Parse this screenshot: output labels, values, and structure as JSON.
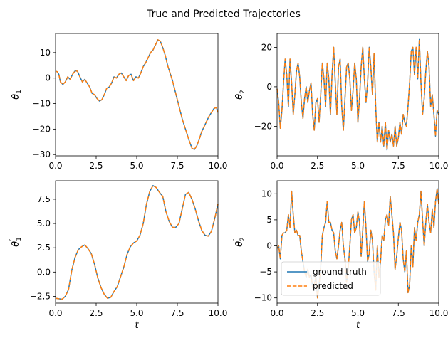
{
  "figure": {
    "title": "True and Predicted Trajectories",
    "colors": {
      "truth": "#1f77b4",
      "predicted": "#ff7f0e"
    }
  },
  "legend": {
    "entries": [
      {
        "key": "truth",
        "label": "ground truth",
        "style": "solid"
      },
      {
        "key": "predicted",
        "label": "predicted",
        "style": "dashed"
      }
    ],
    "placement": "lower-left"
  },
  "chart_data": [
    {
      "type": "line",
      "ylabel": "θ1",
      "xlabel": "",
      "xlim": [
        0,
        10
      ],
      "ylim": [
        -30.5,
        17.5
      ],
      "xticks": [
        0,
        2.5,
        5,
        7.5,
        10
      ],
      "xtick_labels": [
        "0.0",
        "2.5",
        "5.0",
        "7.5",
        "10.0"
      ],
      "yticks": [
        -30,
        -20,
        -10,
        0,
        10
      ],
      "ytick_labels": [
        "−30",
        "−20",
        "−10",
        "0",
        "10"
      ],
      "x": [
        0.0,
        0.1,
        0.2,
        0.3,
        0.45,
        0.6,
        0.75,
        0.9,
        1.05,
        1.2,
        1.35,
        1.5,
        1.65,
        1.8,
        1.95,
        2.1,
        2.25,
        2.4,
        2.55,
        2.7,
        2.85,
        3.0,
        3.15,
        3.3,
        3.45,
        3.6,
        3.75,
        3.9,
        4.05,
        4.2,
        4.35,
        4.5,
        4.65,
        4.8,
        4.95,
        5.1,
        5.25,
        5.4,
        5.55,
        5.7,
        5.85,
        6.0,
        6.15,
        6.3,
        6.45,
        6.6,
        6.75,
        6.9,
        7.05,
        7.2,
        7.4,
        7.6,
        7.8,
        8.0,
        8.2,
        8.4,
        8.55,
        8.7,
        8.85,
        9.0,
        9.15,
        9.3,
        9.45,
        9.6,
        9.75,
        9.9,
        10.0
      ],
      "series": [
        {
          "key": "truth",
          "values": [
            2.7,
            2.5,
            1.5,
            -1.5,
            -2.5,
            -1.5,
            0.5,
            -0.5,
            1.5,
            2.8,
            2.7,
            0.5,
            -1.5,
            -0.5,
            -2.0,
            -3.5,
            -6.0,
            -6.5,
            -8.0,
            -9.0,
            -8.5,
            -6.5,
            -4.0,
            -3.5,
            -2.0,
            0.5,
            0.0,
            1.5,
            2.0,
            0.5,
            -1.0,
            1.0,
            1.5,
            -1.0,
            0.5,
            0.0,
            2.0,
            4.5,
            6.0,
            8.0,
            10.0,
            11.0,
            13.0,
            15.0,
            14.5,
            12.0,
            9.0,
            5.0,
            2.0,
            -1.0,
            -6.0,
            -11.0,
            -16.0,
            -20.0,
            -24.0,
            -27.5,
            -28.0,
            -26.5,
            -24.0,
            -21.0,
            -19.0,
            -17.0,
            -15.0,
            -13.5,
            -12.0,
            -11.5,
            -13.5
          ]
        },
        {
          "key": "predicted",
          "values": [
            2.7,
            2.5,
            1.5,
            -1.5,
            -2.5,
            -1.5,
            0.5,
            -0.5,
            1.5,
            2.8,
            2.7,
            0.5,
            -1.5,
            -0.5,
            -2.0,
            -3.5,
            -6.0,
            -6.5,
            -8.0,
            -9.0,
            -8.5,
            -6.5,
            -4.0,
            -3.5,
            -2.0,
            0.5,
            0.0,
            1.5,
            2.0,
            0.5,
            -1.0,
            1.0,
            1.5,
            -1.0,
            0.5,
            0.0,
            2.0,
            4.5,
            6.0,
            8.0,
            10.0,
            11.0,
            13.0,
            15.0,
            14.5,
            12.0,
            9.0,
            5.0,
            2.0,
            -1.0,
            -6.0,
            -11.0,
            -16.0,
            -20.0,
            -24.0,
            -27.5,
            -28.0,
            -26.5,
            -24.0,
            -21.0,
            -19.0,
            -17.0,
            -15.0,
            -13.5,
            -12.0,
            -11.5,
            -13.5
          ]
        }
      ]
    },
    {
      "type": "line",
      "ylabel": "θ2",
      "xlabel": "",
      "xlim": [
        0,
        10
      ],
      "ylim": [
        -35,
        27
      ],
      "xticks": [
        0,
        2.5,
        5,
        7.5,
        10
      ],
      "xtick_labels": [
        "0.0",
        "2.5",
        "5.0",
        "7.5",
        "10.0"
      ],
      "yticks": [
        -20,
        0,
        20
      ],
      "ytick_labels": [
        "−20",
        "0",
        "20"
      ],
      "x": [
        0.0,
        0.1,
        0.2,
        0.3,
        0.4,
        0.5,
        0.6,
        0.7,
        0.8,
        0.9,
        1.0,
        1.1,
        1.2,
        1.3,
        1.4,
        1.5,
        1.6,
        1.7,
        1.8,
        1.9,
        2.0,
        2.1,
        2.2,
        2.3,
        2.4,
        2.5,
        2.6,
        2.7,
        2.8,
        2.9,
        3.0,
        3.1,
        3.2,
        3.3,
        3.4,
        3.5,
        3.6,
        3.7,
        3.8,
        3.9,
        4.0,
        4.1,
        4.2,
        4.3,
        4.4,
        4.5,
        4.6,
        4.7,
        4.8,
        4.9,
        5.0,
        5.1,
        5.2,
        5.3,
        5.4,
        5.5,
        5.6,
        5.7,
        5.8,
        5.9,
        6.0,
        6.1,
        6.2,
        6.3,
        6.4,
        6.5,
        6.6,
        6.7,
        6.8,
        6.9,
        7.0,
        7.1,
        7.2,
        7.3,
        7.4,
        7.5,
        7.6,
        7.7,
        7.8,
        7.9,
        8.0,
        8.1,
        8.2,
        8.3,
        8.4,
        8.5,
        8.6,
        8.7,
        8.8,
        8.9,
        9.0,
        9.1,
        9.2,
        9.3,
        9.4,
        9.5,
        9.6,
        9.7,
        9.8,
        9.9,
        10.0
      ],
      "series": [
        {
          "key": "truth",
          "values": [
            -1,
            -8,
            -21,
            -12,
            2,
            14,
            6,
            -10,
            14,
            2,
            -14,
            -4,
            8,
            12,
            5,
            -8,
            -16,
            -6,
            0,
            -8,
            -2,
            2,
            -14,
            -22,
            -8,
            -6,
            -18,
            -4,
            12,
            4,
            -10,
            12,
            4,
            -14,
            6,
            20,
            2,
            -14,
            10,
            14,
            -10,
            -22,
            -6,
            10,
            12,
            4,
            -12,
            -2,
            12,
            4,
            -18,
            -6,
            10,
            20,
            4,
            -8,
            2,
            20,
            10,
            -4,
            17,
            -10,
            -28,
            -18,
            -28,
            -20,
            -30,
            -18,
            -32,
            -22,
            -28,
            -24,
            -30,
            -20,
            -30,
            -26,
            -18,
            -24,
            -14,
            -18,
            -20,
            -10,
            2,
            18,
            20,
            6,
            20,
            4,
            24,
            2,
            -14,
            -6,
            8,
            18,
            10,
            -10,
            -4,
            -14,
            -25,
            -12,
            -14
          ]
        },
        {
          "key": "predicted",
          "values": [
            -1,
            -8,
            -21,
            -12,
            2,
            14,
            6,
            -10,
            14,
            2,
            -14,
            -4,
            8,
            12,
            5,
            -8,
            -16,
            -6,
            0,
            -8,
            -2,
            2,
            -14,
            -22,
            -8,
            -6,
            -18,
            -4,
            12,
            4,
            -10,
            12,
            4,
            -14,
            6,
            20,
            2,
            -14,
            10,
            14,
            -10,
            -22,
            -6,
            10,
            12,
            4,
            -12,
            -2,
            12,
            4,
            -18,
            -6,
            10,
            20,
            4,
            -8,
            2,
            20,
            10,
            -4,
            17,
            -10,
            -28,
            -18,
            -28,
            -20,
            -30,
            -18,
            -32,
            -22,
            -28,
            -24,
            -30,
            -20,
            -30,
            -26,
            -18,
            -24,
            -14,
            -18,
            -20,
            -10,
            2,
            18,
            20,
            6,
            20,
            4,
            24,
            2,
            -14,
            -6,
            8,
            18,
            10,
            -10,
            -4,
            -14,
            -25,
            -12,
            -14
          ]
        }
      ]
    },
    {
      "type": "line",
      "ylabel": "θ1′",
      "xlabel": "t",
      "xlim": [
        0,
        10
      ],
      "ylim": [
        -3.2,
        9.4
      ],
      "xticks": [
        0,
        2.5,
        5,
        7.5,
        10
      ],
      "xtick_labels": [
        "0.0",
        "2.5",
        "5.0",
        "7.5",
        "10.0"
      ],
      "yticks": [
        -2.5,
        0,
        2.5,
        5,
        7.5
      ],
      "ytick_labels": [
        "−2.5",
        "0.0",
        "2.5",
        "5.0",
        "7.5"
      ],
      "x": [
        0.0,
        0.2,
        0.4,
        0.6,
        0.8,
        1.0,
        1.2,
        1.4,
        1.6,
        1.8,
        2.0,
        2.2,
        2.4,
        2.6,
        2.8,
        3.0,
        3.2,
        3.4,
        3.6,
        3.8,
        4.0,
        4.2,
        4.4,
        4.6,
        4.8,
        5.0,
        5.2,
        5.4,
        5.6,
        5.8,
        6.0,
        6.2,
        6.4,
        6.6,
        6.8,
        7.0,
        7.2,
        7.4,
        7.6,
        7.8,
        8.0,
        8.2,
        8.4,
        8.6,
        8.8,
        9.0,
        9.2,
        9.4,
        9.6,
        9.8,
        10.0
      ],
      "series": [
        {
          "key": "truth",
          "values": [
            -2.7,
            -2.75,
            -2.8,
            -2.5,
            -1.8,
            0.2,
            1.5,
            2.3,
            2.6,
            2.8,
            2.4,
            1.9,
            0.8,
            -0.6,
            -1.6,
            -2.3,
            -2.7,
            -2.6,
            -2.0,
            -1.5,
            -0.5,
            0.5,
            1.8,
            2.6,
            3.0,
            3.2,
            3.8,
            5.0,
            7.0,
            8.3,
            8.9,
            8.7,
            8.2,
            7.8,
            6.2,
            5.2,
            4.6,
            4.6,
            5.0,
            6.5,
            8.0,
            8.2,
            7.5,
            6.5,
            5.3,
            4.3,
            3.8,
            3.7,
            4.2,
            5.5,
            7.0
          ]
        },
        {
          "key": "predicted",
          "values": [
            -2.7,
            -2.75,
            -2.8,
            -2.5,
            -1.8,
            0.2,
            1.5,
            2.3,
            2.6,
            2.8,
            2.4,
            1.9,
            0.8,
            -0.6,
            -1.6,
            -2.3,
            -2.7,
            -2.6,
            -2.0,
            -1.5,
            -0.5,
            0.5,
            1.8,
            2.6,
            3.0,
            3.2,
            3.8,
            5.0,
            7.0,
            8.3,
            8.9,
            8.7,
            8.2,
            7.8,
            6.2,
            5.2,
            4.6,
            4.6,
            5.0,
            6.5,
            8.0,
            8.2,
            7.5,
            6.5,
            5.3,
            4.3,
            3.8,
            3.7,
            4.2,
            5.5,
            7.0
          ]
        }
      ]
    },
    {
      "type": "line",
      "ylabel": "θ2′",
      "xlabel": "t",
      "xlim": [
        0,
        10
      ],
      "ylim": [
        -11,
        12.5
      ],
      "xticks": [
        0,
        2.5,
        5,
        7.5,
        10
      ],
      "xtick_labels": [
        "0.0",
        "2.5",
        "5.0",
        "7.5",
        "10.0"
      ],
      "yticks": [
        -10,
        -5,
        0,
        5,
        10
      ],
      "ytick_labels": [
        "−10",
        "−5",
        "0",
        "5",
        "10"
      ],
      "x": [
        0.0,
        0.1,
        0.2,
        0.3,
        0.4,
        0.5,
        0.6,
        0.7,
        0.8,
        0.9,
        1.0,
        1.1,
        1.2,
        1.3,
        1.4,
        1.5,
        1.6,
        1.7,
        1.8,
        1.9,
        2.0,
        2.1,
        2.2,
        2.3,
        2.4,
        2.5,
        2.6,
        2.7,
        2.8,
        2.9,
        3.0,
        3.1,
        3.2,
        3.3,
        3.4,
        3.5,
        3.6,
        3.7,
        3.8,
        3.9,
        4.0,
        4.1,
        4.2,
        4.3,
        4.4,
        4.5,
        4.6,
        4.7,
        4.8,
        4.9,
        5.0,
        5.1,
        5.2,
        5.3,
        5.4,
        5.5,
        5.6,
        5.7,
        5.8,
        5.9,
        6.0,
        6.1,
        6.2,
        6.3,
        6.4,
        6.5,
        6.6,
        6.7,
        6.8,
        6.9,
        7.0,
        7.1,
        7.2,
        7.3,
        7.4,
        7.5,
        7.6,
        7.7,
        7.8,
        7.9,
        8.0,
        8.1,
        8.2,
        8.3,
        8.4,
        8.5,
        8.6,
        8.7,
        8.8,
        8.9,
        9.0,
        9.1,
        9.2,
        9.3,
        9.4,
        9.5,
        9.6,
        9.7,
        9.8,
        9.9,
        10.0
      ],
      "series": [
        {
          "key": "truth",
          "values": [
            -0.5,
            0.0,
            -2.5,
            2.0,
            2.5,
            2.5,
            3.0,
            6.0,
            3.5,
            10.5,
            6.0,
            2.5,
            3.0,
            2.0,
            2.0,
            -1.0,
            -3.0,
            -5.0,
            -6.0,
            -4.5,
            -6.0,
            -5.5,
            -8.0,
            -7.5,
            -6.0,
            -10.0,
            -7.5,
            -4.0,
            2.0,
            3.5,
            4.5,
            8.5,
            4.5,
            4.5,
            3.0,
            2.5,
            -1.0,
            -2.5,
            0.0,
            3.0,
            4.5,
            0.0,
            -2.5,
            -7.0,
            -4.5,
            0.0,
            5.0,
            6.0,
            2.5,
            3.5,
            6.5,
            4.5,
            -2.0,
            3.0,
            8.5,
            3.5,
            -3.0,
            -1.5,
            3.0,
            1.0,
            -5.0,
            -8.5,
            0.0,
            -6.0,
            -3.0,
            2.0,
            1.0,
            5.0,
            6.0,
            4.0,
            9.5,
            6.0,
            2.5,
            -4.5,
            -2.0,
            1.5,
            4.5,
            3.0,
            -2.5,
            -5.0,
            -1.0,
            -9.0,
            -7.5,
            0.0,
            -4.0,
            3.5,
            1.0,
            4.5,
            6.0,
            10.5,
            5.0,
            0.0,
            4.5,
            8.0,
            4.5,
            2.5,
            7.0,
            3.5,
            8.5,
            11.0,
            8.0
          ]
        },
        {
          "key": "predicted",
          "values": [
            -0.5,
            0.0,
            -2.5,
            2.0,
            2.5,
            2.5,
            3.0,
            6.0,
            3.5,
            10.5,
            6.0,
            2.5,
            3.0,
            2.0,
            2.0,
            -1.0,
            -3.0,
            -5.0,
            -6.0,
            -4.5,
            -6.0,
            -5.5,
            -8.0,
            -7.5,
            -6.0,
            -10.0,
            -7.5,
            -4.0,
            2.0,
            3.5,
            4.5,
            8.5,
            4.5,
            4.5,
            3.0,
            2.5,
            -1.0,
            -2.5,
            0.0,
            3.0,
            4.5,
            0.0,
            -2.5,
            -7.0,
            -4.5,
            0.0,
            5.0,
            6.0,
            2.5,
            3.5,
            6.5,
            4.5,
            -2.0,
            3.0,
            8.5,
            3.5,
            -3.0,
            -1.5,
            3.0,
            1.0,
            -5.0,
            -8.5,
            0.0,
            -6.0,
            -3.0,
            2.0,
            1.0,
            5.0,
            6.0,
            4.0,
            9.5,
            6.0,
            2.5,
            -4.5,
            -2.0,
            1.5,
            4.5,
            3.0,
            -2.5,
            -5.0,
            -1.0,
            -9.0,
            -7.5,
            0.0,
            -4.0,
            3.5,
            1.0,
            4.5,
            6.0,
            10.5,
            5.0,
            0.0,
            4.5,
            8.0,
            4.5,
            2.5,
            7.0,
            3.5,
            8.5,
            11.0,
            8.0
          ]
        }
      ]
    }
  ]
}
